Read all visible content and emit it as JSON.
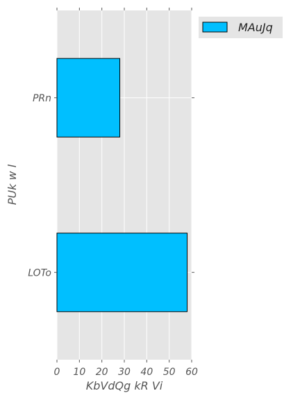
{
  "chart_data": {
    "type": "bar",
    "orientation": "horizontal",
    "categories": [
      "PRn",
      "LOTo"
    ],
    "series": [
      {
        "name": "MAuJq",
        "values": [
          28,
          58
        ]
      }
    ],
    "xlabel": "KbVdQg kR Vi",
    "ylabel": "PUk w l",
    "xlim": [
      0,
      60
    ],
    "xticks": [
      0,
      10,
      20,
      30,
      40,
      50,
      60
    ],
    "grid": true,
    "legend_position": "outside-top-right"
  },
  "colors": {
    "bar": "#00BFFF",
    "plot_background": "#E5E5E5",
    "grid": "#FFFFFF"
  }
}
